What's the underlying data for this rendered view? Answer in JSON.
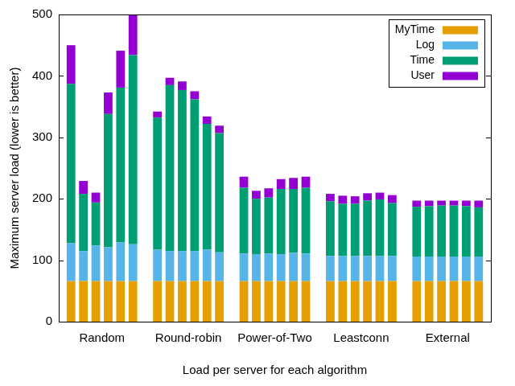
{
  "chart_data": {
    "type": "bar",
    "stacked": true,
    "grid": false,
    "legend": "top-right",
    "x_label": "Load per server for each algorithm",
    "y_label": "Maximum server load (lower is better)",
    "categories": [
      "Random",
      "Round-robin",
      "Power-of-Two",
      "Leastconn",
      "External"
    ],
    "ylim": [
      0,
      500
    ],
    "yticks": [
      0,
      100,
      200,
      300,
      400,
      500
    ],
    "series": [
      {
        "name": "MyTime",
        "color": "#e69f00",
        "values": [
          [
            66,
            66,
            66,
            66,
            66,
            66
          ],
          [
            66,
            66,
            66,
            66,
            66,
            66
          ],
          [
            66,
            66,
            66,
            66,
            66,
            66
          ],
          [
            66,
            66,
            66,
            66,
            66,
            66
          ],
          [
            66,
            66,
            66,
            66,
            66,
            66
          ]
        ]
      },
      {
        "name": "Log",
        "color": "#56b4e9",
        "values": [
          [
            62,
            49,
            58,
            55,
            63,
            60
          ],
          [
            51,
            49,
            49,
            49,
            51,
            47
          ],
          [
            45,
            44,
            45,
            44,
            46,
            45
          ],
          [
            41,
            41,
            41,
            41,
            41,
            41
          ],
          [
            40,
            40,
            40,
            40,
            40,
            40
          ]
        ]
      },
      {
        "name": "Time",
        "color": "#009e73",
        "values": [
          [
            259,
            93,
            70,
            217,
            252,
            308
          ],
          [
            215,
            270,
            262,
            247,
            205,
            194
          ],
          [
            107,
            90,
            91,
            106,
            104,
            107
          ],
          [
            89,
            85,
            85,
            90,
            92,
            86
          ],
          [
            81,
            82,
            83,
            83,
            82,
            80
          ]
        ]
      },
      {
        "name": "User",
        "color": "#9400d3",
        "values": [
          [
            63,
            21,
            16,
            35,
            60,
            66
          ],
          [
            10,
            12,
            14,
            13,
            12,
            12
          ],
          [
            18,
            13,
            15,
            16,
            18,
            18
          ],
          [
            12,
            13,
            12,
            12,
            11,
            13
          ],
          [
            10,
            9,
            8,
            8,
            9,
            11
          ]
        ]
      }
    ]
  }
}
